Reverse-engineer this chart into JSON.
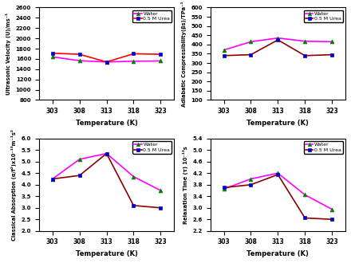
{
  "temp": [
    303,
    308,
    313,
    318,
    323
  ],
  "uv_water": [
    1640,
    1565,
    1540,
    1555,
    1560
  ],
  "uv_urea": [
    1710,
    1690,
    1540,
    1700,
    1690
  ],
  "ac_water": [
    370,
    415,
    435,
    418,
    415
  ],
  "ac_urea": [
    340,
    345,
    425,
    340,
    345
  ],
  "ca_water": [
    4.25,
    5.1,
    5.35,
    4.35,
    3.75
  ],
  "ca_urea": [
    4.25,
    4.4,
    5.35,
    3.1,
    3.0
  ],
  "rt_water": [
    3.65,
    4.0,
    4.2,
    3.45,
    2.95
  ],
  "rt_urea": [
    3.7,
    3.8,
    4.15,
    2.65,
    2.6
  ],
  "water_line_color": "#ff00ff",
  "urea_line_color_uv": "#ff0000",
  "urea_line_color_rest": "#8B0000",
  "water_marker_color": "#008000",
  "urea_marker_color": "#0000CD",
  "water_marker": "^",
  "urea_marker": "s",
  "bg_color": "#ffffff",
  "uv_ylim": [
    800,
    2600
  ],
  "uv_yticks": [
    800,
    1000,
    1200,
    1400,
    1600,
    1800,
    2000,
    2200,
    2400,
    2600
  ],
  "ac_ylim": [
    100,
    600
  ],
  "ac_yticks": [
    100,
    150,
    200,
    250,
    300,
    350,
    400,
    450,
    500,
    550,
    600
  ],
  "ca_ylim": [
    2.0,
    6.0
  ],
  "ca_yticks": [
    2.0,
    2.5,
    3.0,
    3.5,
    4.0,
    4.5,
    5.0,
    5.5,
    6.0
  ],
  "rt_ylim": [
    2.2,
    5.4
  ],
  "rt_yticks": [
    2.2,
    2.6,
    3.0,
    3.4,
    3.8,
    4.2,
    4.6,
    5.0,
    5.4
  ],
  "xticks": [
    303,
    308,
    313,
    318,
    323
  ],
  "xlim": [
    300.5,
    325.5
  ],
  "xlabel": "Temperature (K)",
  "uv_ylabel": "Ultrasonic Velocity (U)/ms⁻¹",
  "ac_ylabel": "Adiabatic Compressibility(βs)/TPa⁻¹",
  "ca_ylabel": "Classical Absorption (α/f²)x10⁻¹³m⁻¹s²",
  "rt_ylabel": "Relaxation Time (τ) 10⁻¹³s"
}
